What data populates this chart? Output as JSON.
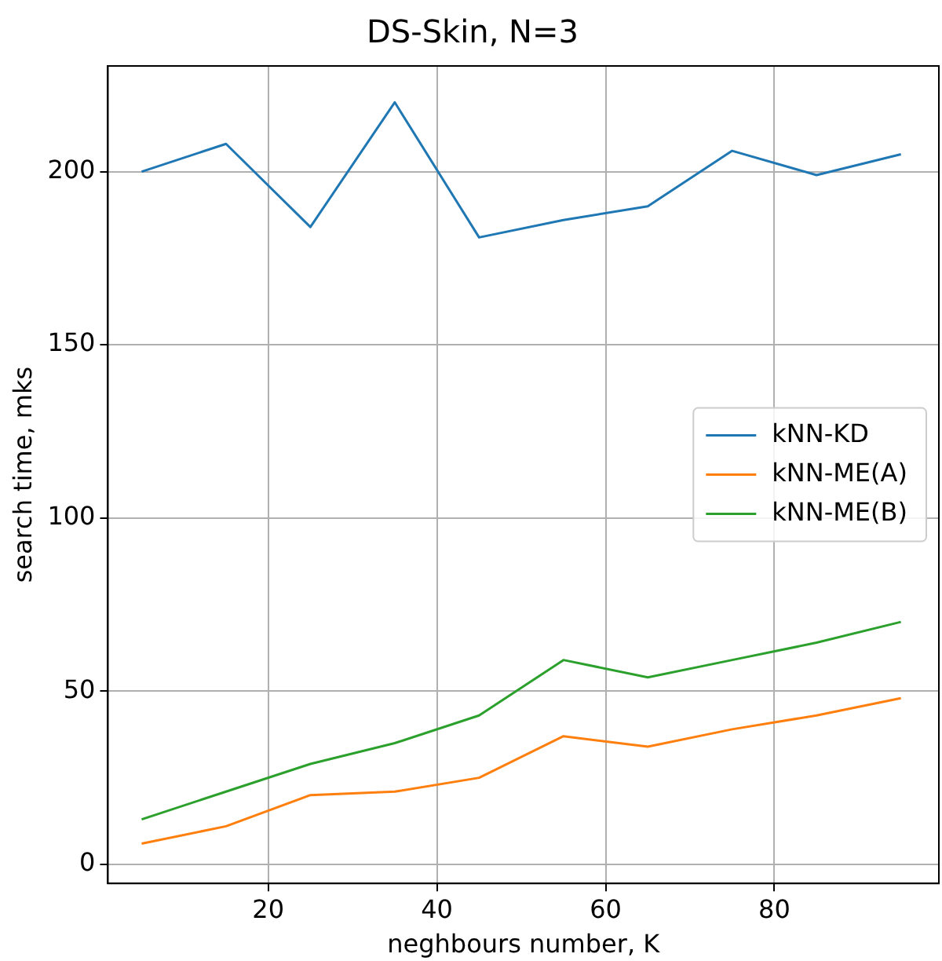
{
  "chart_data": {
    "type": "line",
    "title": "DS-Skin, N=3",
    "xlabel": "neghbours number, K",
    "ylabel": "search time, mks",
    "x": [
      5,
      15,
      25,
      35,
      45,
      55,
      65,
      75,
      85,
      95
    ],
    "series": [
      {
        "name": "kNN-KD",
        "color": "#1f77b4",
        "values": [
          200,
          208,
          184,
          220,
          181,
          186,
          190,
          206,
          199,
          205
        ]
      },
      {
        "name": "kNN-ME(A)",
        "color": "#ff7f0e",
        "values": [
          6,
          11,
          20,
          21,
          25,
          37,
          34,
          39,
          43,
          48
        ]
      },
      {
        "name": "kNN-ME(B)",
        "color": "#2ca02c",
        "values": [
          13,
          21,
          29,
          35,
          43,
          59,
          54,
          59,
          64,
          70
        ]
      }
    ],
    "xlim": [
      1,
      99.5
    ],
    "xticks": [
      20,
      40,
      60,
      80
    ],
    "ylim": [
      -5.5,
      230.5
    ],
    "yticks": [
      0,
      50,
      100,
      150,
      200
    ],
    "grid": true,
    "legend": "center right",
    "marker": "none",
    "line_style": "solid"
  }
}
